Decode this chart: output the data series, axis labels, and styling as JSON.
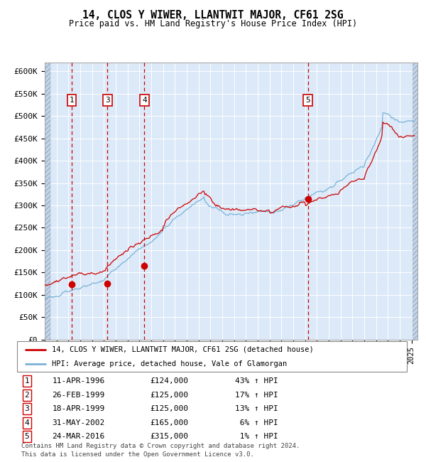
{
  "title": "14, CLOS Y WIWER, LLANTWIT MAJOR, CF61 2SG",
  "subtitle": "Price paid vs. HM Land Registry's House Price Index (HPI)",
  "ylim": [
    0,
    620000
  ],
  "yticks": [
    0,
    50000,
    100000,
    150000,
    200000,
    250000,
    300000,
    350000,
    400000,
    450000,
    500000,
    550000,
    600000
  ],
  "ytick_labels": [
    "£0",
    "£50K",
    "£100K",
    "£150K",
    "£200K",
    "£250K",
    "£300K",
    "£350K",
    "£400K",
    "£450K",
    "£500K",
    "£550K",
    "£600K"
  ],
  "xlim_start": 1994.0,
  "xlim_end": 2025.5,
  "hpi_color": "#7ab3d8",
  "price_color": "#cc0000",
  "dot_color": "#cc0000",
  "background_color": "#dce9f8",
  "grid_color": "#ffffff",
  "dashed_line_color": "#cc0000",
  "transactions": [
    {
      "label": "1",
      "date_num": 1996.28,
      "price": 124000
    },
    {
      "label": "3",
      "date_num": 1999.3,
      "price": 125000
    },
    {
      "label": "4",
      "date_num": 2002.42,
      "price": 165000
    },
    {
      "label": "5",
      "date_num": 2016.23,
      "price": 315000
    }
  ],
  "table_rows": [
    {
      "num": "1",
      "date": "11-APR-1996",
      "price": "£124,000",
      "pct": "43%",
      "arrow": "↑",
      "vs": "HPI"
    },
    {
      "num": "2",
      "date": "26-FEB-1999",
      "price": "£125,000",
      "pct": "17%",
      "arrow": "↑",
      "vs": "HPI"
    },
    {
      "num": "3",
      "date": "18-APR-1999",
      "price": "£125,000",
      "pct": "13%",
      "arrow": "↑",
      "vs": "HPI"
    },
    {
      "num": "4",
      "date": "31-MAY-2002",
      "price": "£165,000",
      "pct": " 6%",
      "arrow": "↑",
      "vs": "HPI"
    },
    {
      "num": "5",
      "date": "24-MAR-2016",
      "price": "£315,000",
      "pct": " 1%",
      "arrow": "↑",
      "vs": "HPI"
    }
  ],
  "legend_line1": "14, CLOS Y WIWER, LLANTWIT MAJOR, CF61 2SG (detached house)",
  "legend_line2": "HPI: Average price, detached house, Vale of Glamorgan",
  "footer_line1": "Contains HM Land Registry data © Crown copyright and database right 2024.",
  "footer_line2": "This data is licensed under the Open Government Licence v3.0."
}
